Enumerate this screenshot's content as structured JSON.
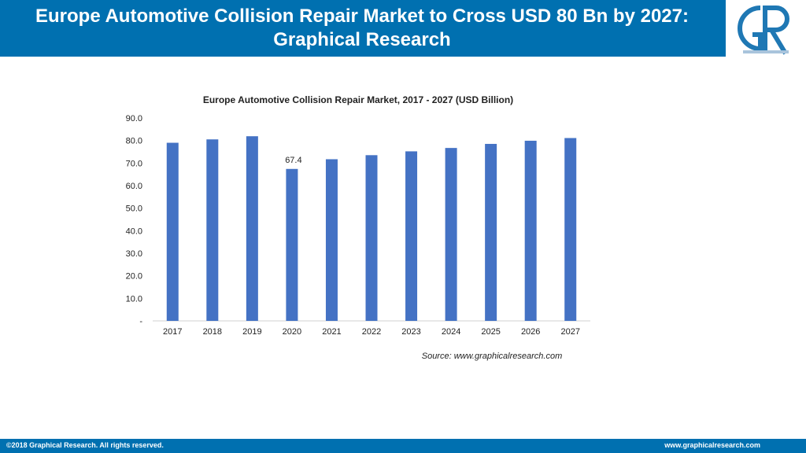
{
  "header": {
    "title": "Europe Automotive Collision Repair Market to Cross USD 80 Bn by 2027: Graphical Research"
  },
  "logo": {
    "icon": "graphical-research-logo-icon",
    "text": "GR"
  },
  "chart_data": {
    "type": "bar",
    "title": "Europe Automotive Collision Repair Market, 2017  - 2027 (USD Billion)",
    "categories": [
      "2017",
      "2018",
      "2019",
      "2020",
      "2021",
      "2022",
      "2023",
      "2024",
      "2025",
      "2026",
      "2027"
    ],
    "values": [
      79.0,
      80.5,
      81.9,
      67.4,
      71.7,
      73.5,
      75.2,
      76.7,
      78.5,
      79.9,
      81.1
    ],
    "y_ticks": [
      "-",
      "10.0",
      "20.0",
      "30.0",
      "40.0",
      "50.0",
      "60.0",
      "70.0",
      "80.0",
      "90.0"
    ],
    "ylim": [
      0,
      90
    ],
    "xlabel": "",
    "ylabel": "",
    "data_labels": [
      {
        "category": "2020",
        "text": "67.4"
      }
    ],
    "bar_color": "#4472c4",
    "grid": false,
    "legend": false
  },
  "source": "Source: www.graphicalresearch.com",
  "footer": {
    "left": "©2018 Graphical Research. All rights reserved.",
    "right": "www.graphicalresearch.com"
  },
  "colors": {
    "brand": "#0070b0",
    "bar": "#4472c4"
  }
}
